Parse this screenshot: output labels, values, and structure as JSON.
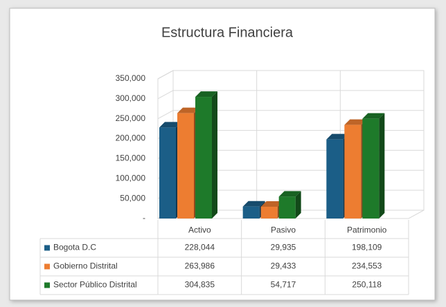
{
  "chart_data": {
    "type": "bar3d",
    "title": "Estructura Financiera",
    "categories": [
      "Activo",
      "Pasivo",
      "Patrimonio"
    ],
    "series": [
      {
        "name": "Bogota D.C",
        "color": "#1b5e87",
        "values": [
          228044,
          29935,
          198109
        ],
        "value_labels": [
          "228,044",
          "29,935",
          "198,109"
        ]
      },
      {
        "name": "Gobierno Distrital",
        "color": "#ed7d31",
        "values": [
          263986,
          29433,
          234553
        ],
        "value_labels": [
          "263,986",
          "29,433",
          "234,553"
        ]
      },
      {
        "name": "Sector Público Distrital",
        "color": "#1e7a2a",
        "values": [
          304835,
          54717,
          250118
        ],
        "value_labels": [
          "304,835",
          "54,717",
          "250,118"
        ]
      }
    ],
    "ylim": [
      0,
      350000
    ],
    "yticks": [
      {
        "value": 0,
        "label": "-"
      },
      {
        "value": 50000,
        "label": "50,000"
      },
      {
        "value": 100000,
        "label": "100,000"
      },
      {
        "value": 150000,
        "label": "150,000"
      },
      {
        "value": 200000,
        "label": "200,000"
      },
      {
        "value": 250000,
        "label": "250,000"
      },
      {
        "value": 300000,
        "label": "300,000"
      },
      {
        "value": 350000,
        "label": "350,000"
      }
    ],
    "grid": true
  }
}
